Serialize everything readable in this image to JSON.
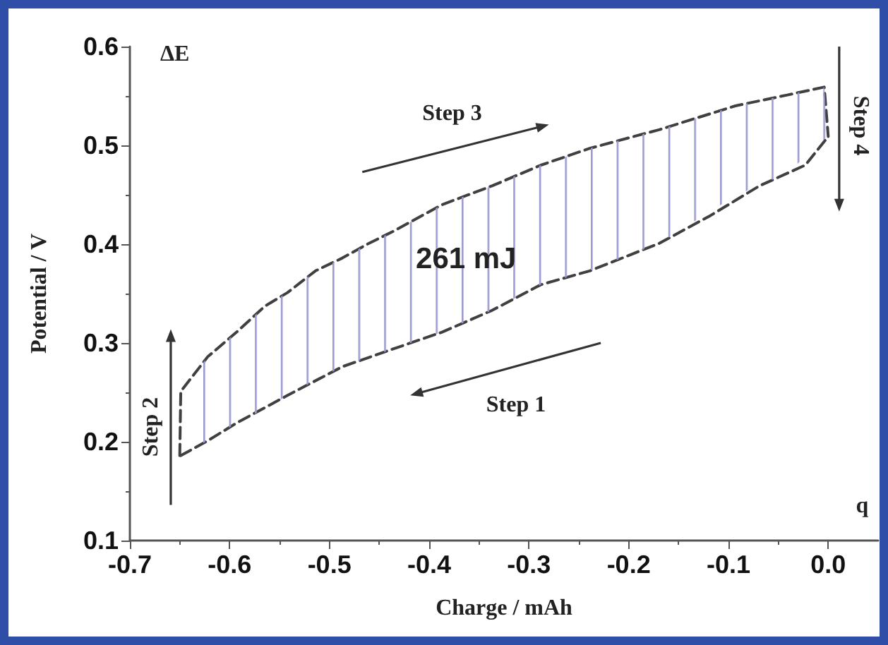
{
  "chart_data": {
    "type": "line",
    "xlabel": "Charge / mAh",
    "ylabel": "Potential / V",
    "annotations": [
      "Step 3",
      "Step 1",
      "Step 2",
      "Step 4",
      "261 mJ",
      "ΔE",
      "q"
    ],
    "series": [
      {
        "color": "#404040",
        "x": [
          -0.65,
          -0.649,
          -0.622,
          -0.593,
          -0.565,
          -0.542,
          -0.514,
          -0.487,
          -0.462,
          -0.436,
          -0.387,
          -0.337,
          -0.288,
          -0.239,
          -0.169,
          -0.093,
          -0.041,
          -0.004,
          0.0
        ],
        "values": [
          0.186,
          0.251,
          0.286,
          0.311,
          0.337,
          0.351,
          0.373,
          0.386,
          0.4,
          0.413,
          0.44,
          0.459,
          0.48,
          0.497,
          0.516,
          0.54,
          0.551,
          0.559,
          0.509
        ],
        "lower": [
          0.186,
          0.186,
          0.201,
          0.219,
          0.233,
          0.247,
          0.262,
          0.276,
          0.285,
          0.294,
          0.311,
          0.333,
          0.359,
          0.373,
          0.401,
          0.449,
          0.472,
          0.506,
          0.509
        ],
        "upper": [
          0.186,
          0.251,
          0.286,
          0.311,
          0.337,
          0.351,
          0.373,
          0.386,
          0.4,
          0.413,
          0.44,
          0.459,
          0.48,
          0.497,
          0.516,
          0.54,
          0.551,
          0.559,
          0.509
        ]
      },
      {
        "color": "#404040",
        "x": [
          -0.649,
          -0.622,
          -0.593,
          -0.542,
          -0.487,
          -0.436,
          -0.387,
          -0.337,
          -0.288,
          -0.239,
          -0.169,
          -0.118,
          -0.069,
          -0.023,
          0.0
        ],
        "values": [
          0.186,
          0.201,
          0.219,
          0.247,
          0.276,
          0.294,
          0.311,
          0.333,
          0.359,
          0.373,
          0.401,
          0.429,
          0.459,
          0.48,
          0.509
        ]
      }
    ],
    "xlim": [
      -0.7,
      0.05
    ],
    "xticks": [
      -0.7,
      -0.6,
      -0.5,
      -0.4,
      -0.3,
      -0.2,
      -0.1,
      {
        "value": 0,
        "label": "0.0"
      }
    ],
    "ylim": [
      0.1,
      0.6
    ],
    "yticks": [
      0.1,
      0.2,
      0.3,
      0.4,
      0.5,
      0.6
    ],
    "grid": false,
    "marker": "none",
    "line_style": "dashed"
  }
}
